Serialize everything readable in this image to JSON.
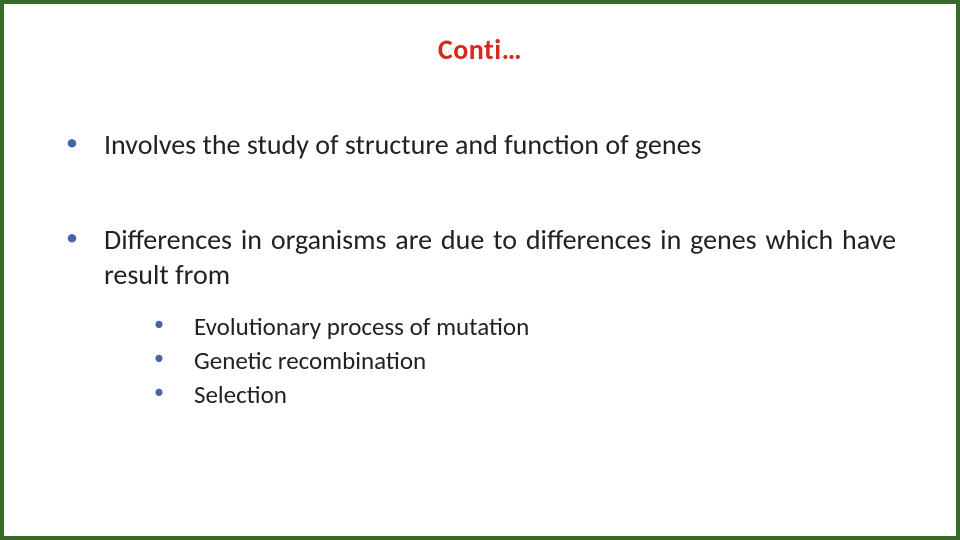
{
  "colors": {
    "border": "#3a6a2a",
    "title": "#d8281e",
    "bullet_dot": "#4a62a8",
    "text": "#222222",
    "background": "#ffffff"
  },
  "title": "Conti…",
  "bullets": [
    {
      "text": "Involves the study of structure and function of genes",
      "sub": []
    },
    {
      "text": "Differences in organisms are due to differences in genes which have result from",
      "sub": [
        "Evolutionary process of mutation",
        "Genetic recombination",
        "Selection"
      ]
    }
  ]
}
